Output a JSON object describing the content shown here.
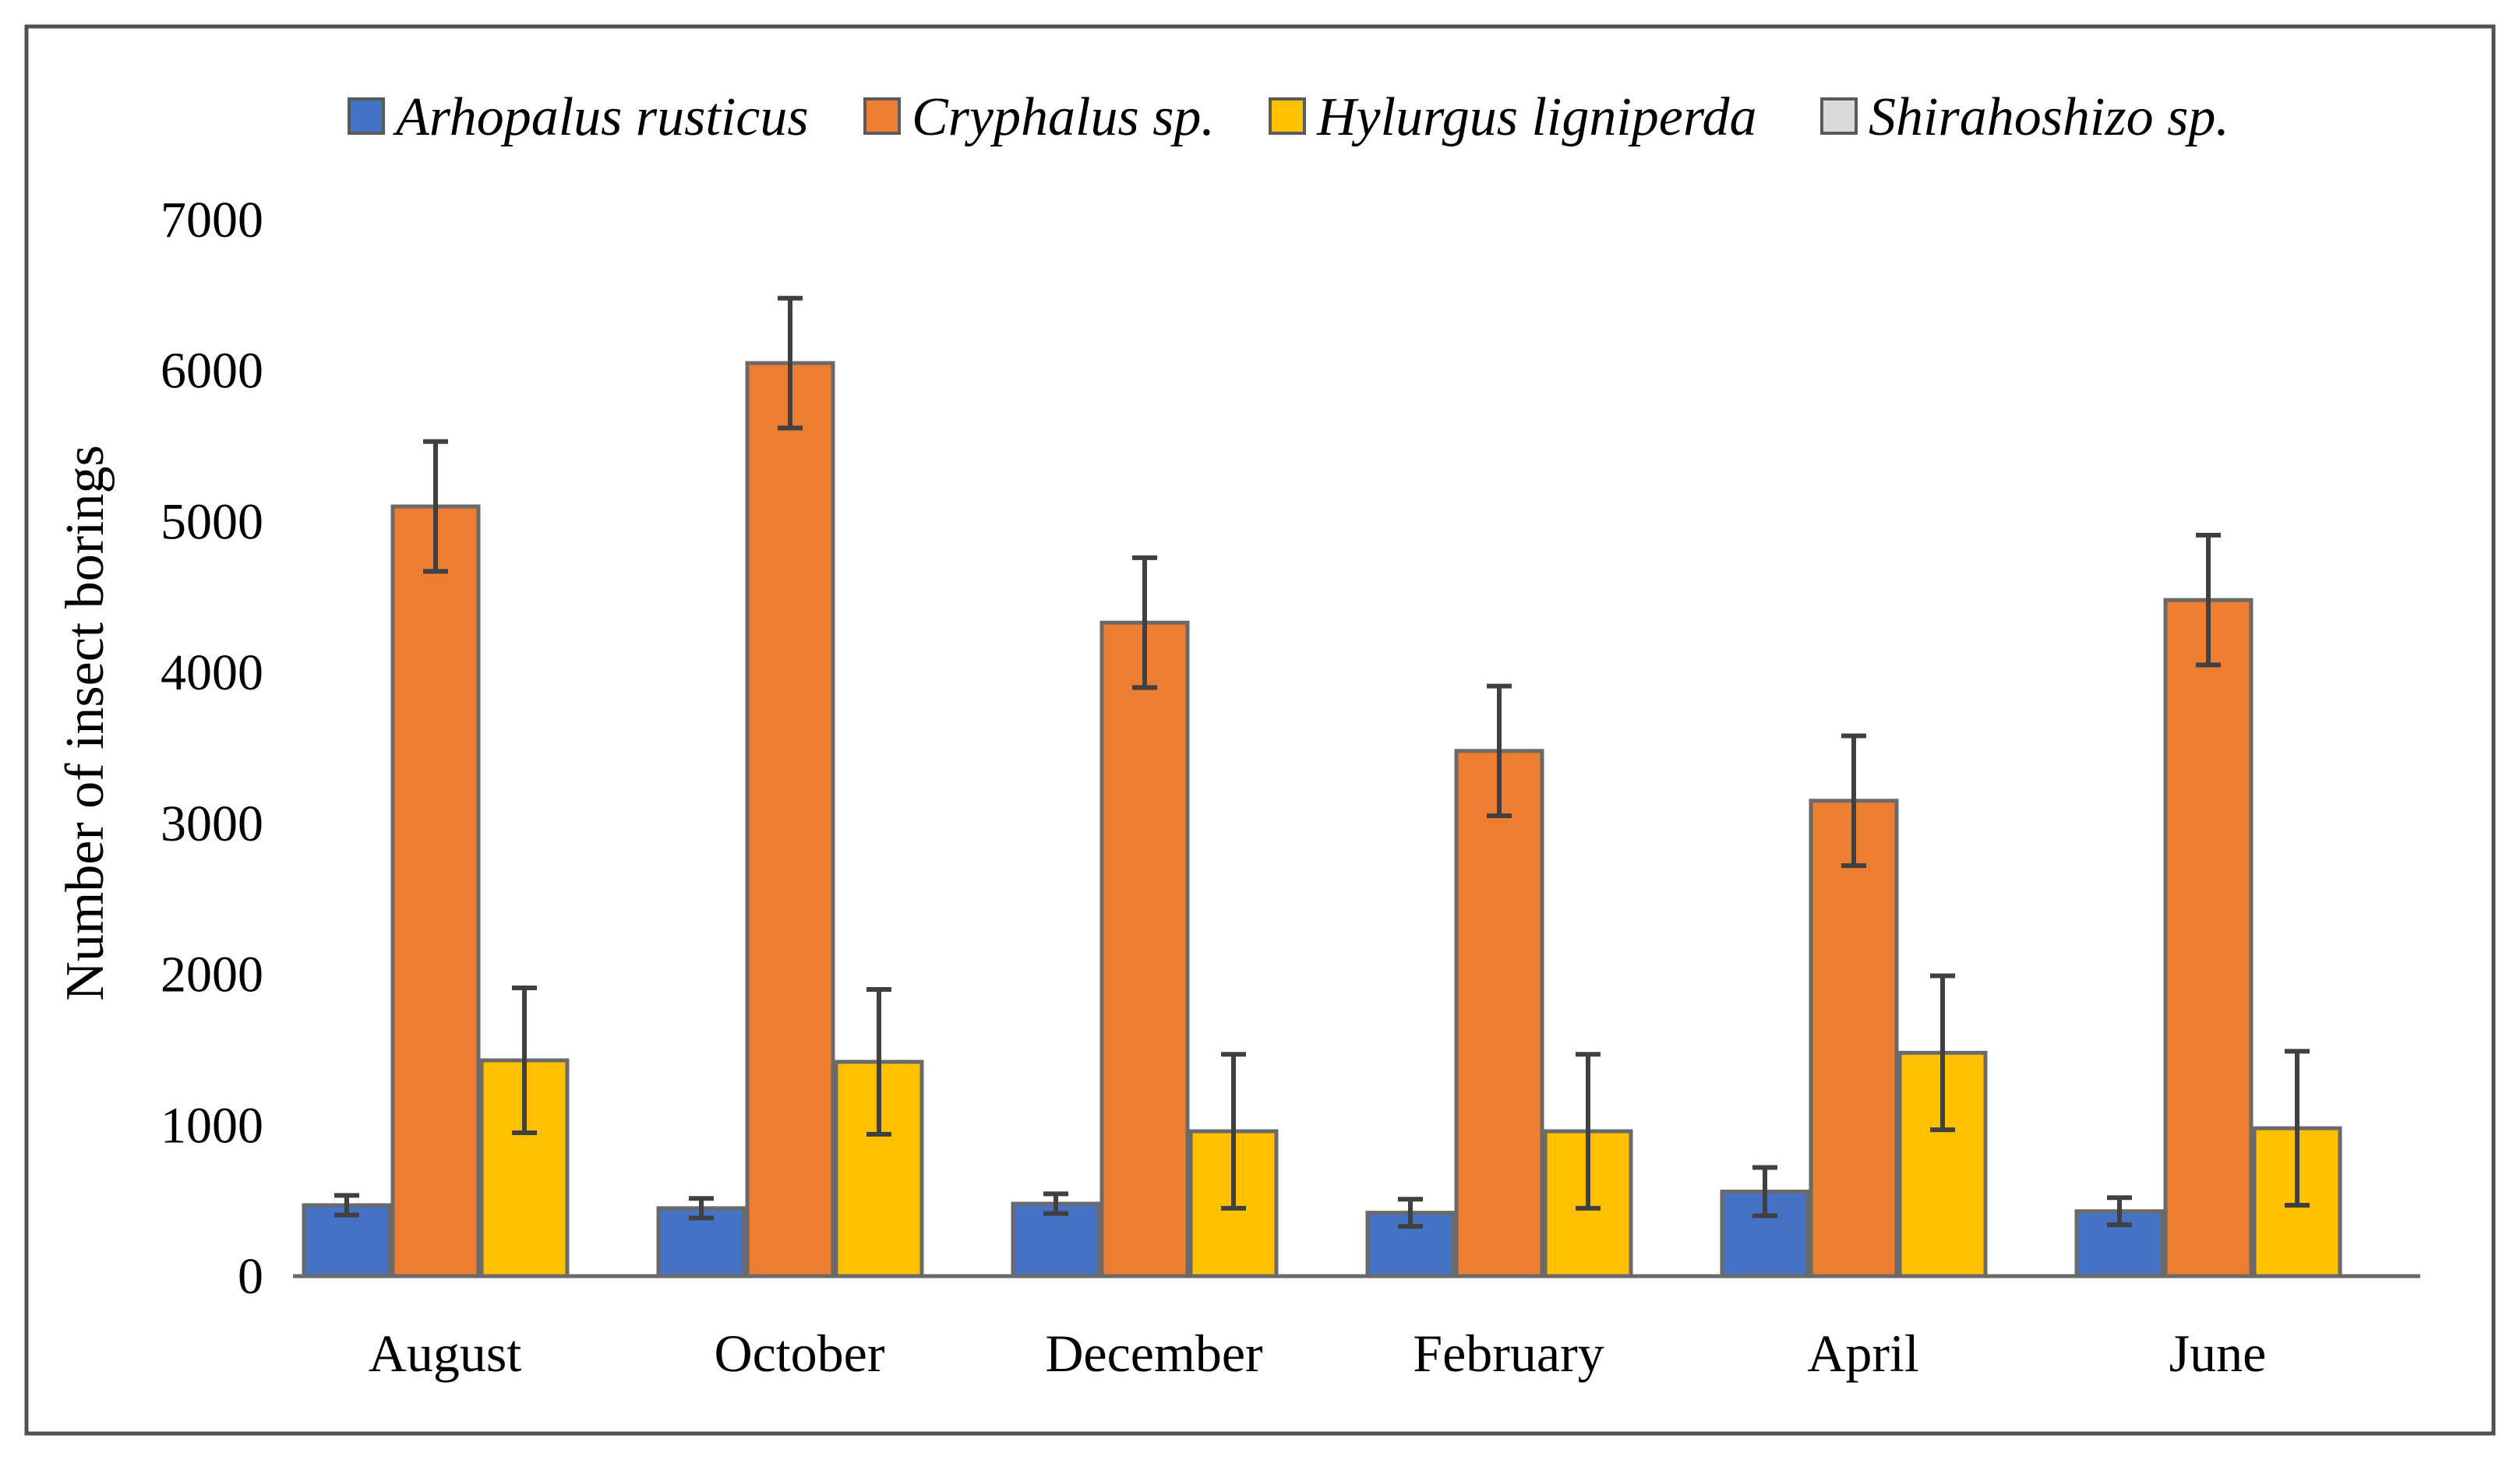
{
  "chart_data": {
    "type": "bar",
    "title": "",
    "xlabel": "",
    "ylabel": "Number of insect borings",
    "ylim": [
      0,
      7000
    ],
    "yticks": [
      0,
      1000,
      2000,
      3000,
      4000,
      5000,
      6000,
      7000
    ],
    "grid": false,
    "legend_position": "top",
    "categories": [
      "August",
      "October",
      "December",
      "February",
      "April",
      "June"
    ],
    "series": [
      {
        "name": "Arhopalus rusticus",
        "color": "#4472C4",
        "values": [
          470,
          450,
          480,
          420,
          560,
          430
        ],
        "error": [
          65,
          65,
          65,
          90,
          160,
          90
        ]
      },
      {
        "name": "Cryphalus sp.",
        "color": "#ED7D31",
        "values": [
          5100,
          6050,
          4330,
          3480,
          3150,
          4480
        ],
        "error": [
          430,
          430,
          430,
          430,
          430,
          430
        ]
      },
      {
        "name": "Hylurgus ligniperda",
        "color": "#FFC000",
        "values": [
          1430,
          1420,
          960,
          960,
          1480,
          980
        ],
        "error": [
          480,
          480,
          510,
          510,
          510,
          510
        ]
      },
      {
        "name": "Shirahoshizo sp.",
        "color": "#D9D9D9",
        "values": [
          0,
          0,
          0,
          0,
          0,
          0
        ],
        "error": [
          0,
          0,
          0,
          0,
          0,
          0
        ]
      }
    ]
  }
}
